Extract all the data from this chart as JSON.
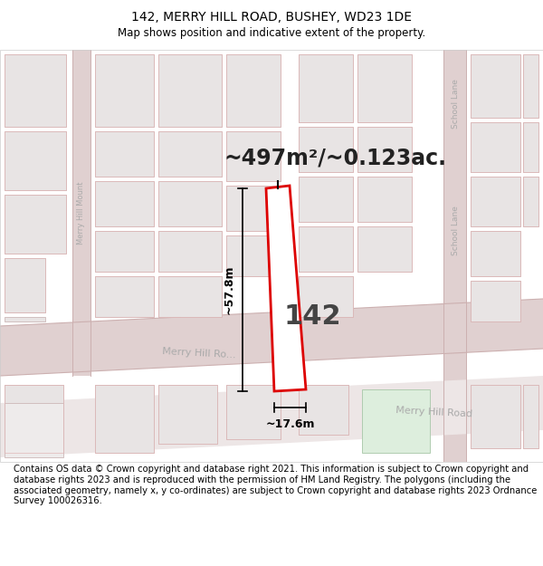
{
  "title": "142, MERRY HILL ROAD, BUSHEY, WD23 1DE",
  "subtitle": "Map shows position and indicative extent of the property.",
  "area_text": "~497m²/~0.123ac.",
  "property_number": "142",
  "dim_width": "~17.6m",
  "dim_height": "~57.8m",
  "map_bg": "#f7f4f4",
  "block_face": "#e8e4e4",
  "block_edge": "#ccb8b8",
  "road_face": "#e0d0d0",
  "road_line": "#ccb0b0",
  "property_outline_color": "#dd0000",
  "property_fill_color": "#ffffff",
  "road_text_color": "#aaaaaa",
  "footer_text": "Contains OS data © Crown copyright and database right 2021. This information is subject to Crown copyright and database rights 2023 and is reproduced with the permission of HM Land Registry. The polygons (including the associated geometry, namely x, y co-ordinates) are subject to Crown copyright and database rights 2023 Ordnance Survey 100026316.",
  "title_fontsize": 10,
  "subtitle_fontsize": 8.5,
  "footer_fontsize": 7.2
}
